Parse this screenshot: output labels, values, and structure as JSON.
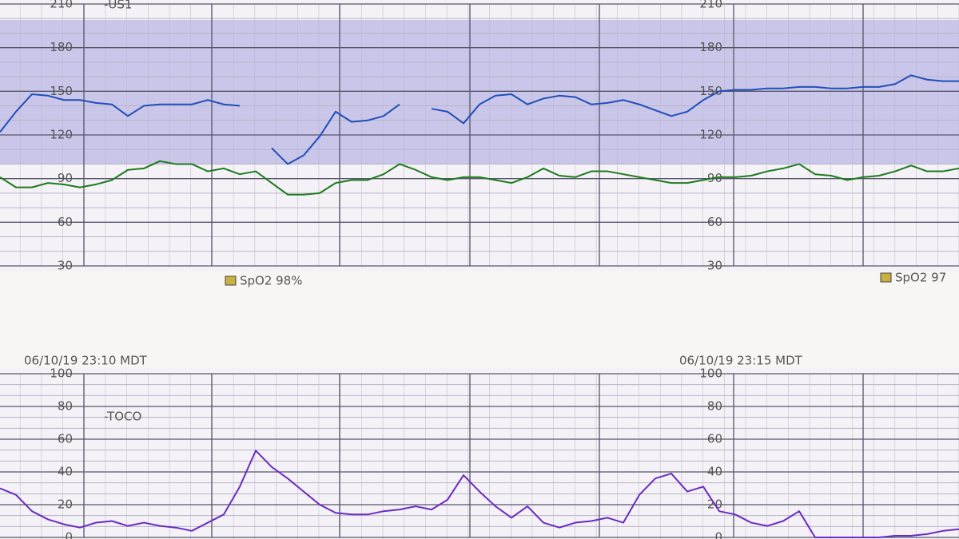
{
  "chart_data": [
    {
      "type": "line",
      "annotations": [
        "-US1",
        "SpO2  98%",
        "SpO2  97"
      ],
      "ylim": [
        30,
        210
      ],
      "yticks": [
        30,
        60,
        90,
        120,
        150,
        180,
        210
      ],
      "grid": true,
      "series": [
        {
          "color": "#1f4fb8",
          "values": [
            122,
            136,
            148,
            147,
            144,
            144,
            142,
            141,
            133,
            140,
            141,
            141,
            141,
            144,
            141,
            140,
            null,
            111,
            100,
            106,
            119,
            136,
            129,
            130,
            133,
            141,
            null,
            138,
            136,
            128,
            141,
            147,
            148,
            141,
            145,
            147,
            146,
            141,
            142,
            144,
            141,
            137,
            133,
            136,
            144,
            150,
            151,
            151,
            152,
            152,
            153,
            153,
            152,
            152,
            153,
            153,
            155,
            161,
            158,
            157,
            157
          ]
        },
        {
          "color": "#1e7a1e",
          "values": [
            91,
            84,
            84,
            87,
            86,
            84,
            86,
            89,
            96,
            97,
            102,
            100,
            100,
            95,
            97,
            93,
            95,
            87,
            79,
            79,
            80,
            87,
            89,
            89,
            93,
            100,
            96,
            91,
            89,
            91,
            91,
            89,
            87,
            91,
            97,
            92,
            91,
            95,
            95,
            93,
            91,
            89,
            87,
            87,
            89,
            91,
            91,
            92,
            95,
            97,
            100,
            93,
            92,
            89,
            91,
            92,
            95,
            99,
            95,
            95,
            97
          ]
        }
      ]
    },
    {
      "type": "line",
      "annotations": [
        "-TOCO"
      ],
      "categories": [
        null,
        null,
        null,
        null,
        null,
        "06/10/19 23:10 MDT",
        null,
        null,
        null,
        null,
        null,
        null,
        null,
        null,
        null,
        null,
        null,
        null,
        null,
        null,
        null,
        null,
        null,
        null,
        null,
        null,
        null,
        null,
        null,
        null,
        null,
        null,
        null,
        null,
        null,
        null,
        null,
        null,
        null,
        null,
        null,
        null,
        null,
        null,
        null,
        null,
        "06/10/19 23:15 MDT",
        null,
        null,
        null,
        null,
        null,
        null,
        null,
        null,
        null,
        null,
        null,
        null,
        null,
        null
      ],
      "ylim": [
        0,
        100
      ],
      "yticks": [
        0,
        20,
        40,
        60,
        80,
        100
      ],
      "grid": true,
      "series": [
        {
          "color": "#6a2bc4",
          "values": [
            30,
            26,
            16,
            11,
            8,
            6,
            9,
            10,
            7,
            9,
            7,
            6,
            4,
            9,
            14,
            31,
            53,
            43,
            36,
            28,
            20,
            15,
            14,
            14,
            16,
            17,
            19,
            17,
            23,
            38,
            28,
            19,
            12,
            19,
            9,
            6,
            9,
            10,
            12,
            9,
            26,
            36,
            39,
            28,
            31,
            16,
            14,
            9,
            7,
            10,
            16,
            0,
            0,
            0,
            0,
            0,
            1,
            1,
            2,
            4,
            5
          ]
        }
      ]
    }
  ]
}
